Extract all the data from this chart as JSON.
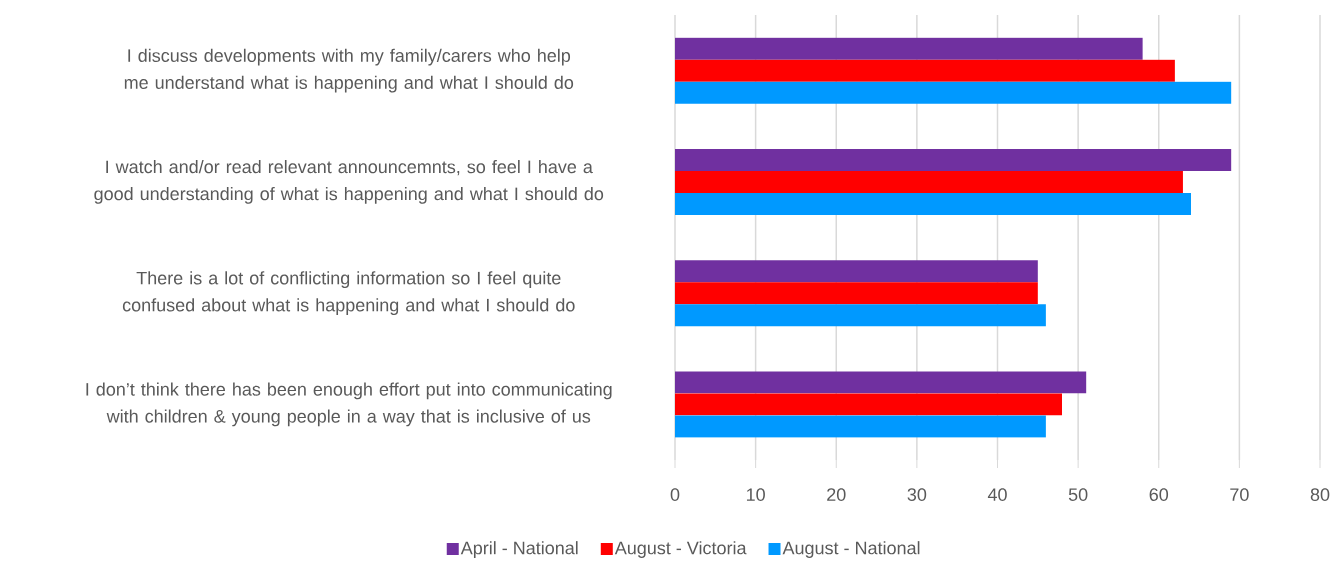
{
  "chart_data": {
    "type": "bar",
    "orientation": "horizontal",
    "categories": [
      "I discuss developments with my family/carers who help me understand what is happening and what I should do",
      "I watch and/or read relevant announcemnts, so feel I have a good understanding of what is happening and what I should do",
      "There is a lot of conflicting information so I feel quite confused about what is happening and what I should do",
      "I don’t think there has been enough effort put into communicating with children & young people in a way that is inclusive of us"
    ],
    "series": [
      {
        "name": "April - National",
        "color": "#7030a0",
        "values": [
          58,
          69,
          45,
          51
        ]
      },
      {
        "name": "August - Victoria",
        "color": "#ff0000",
        "values": [
          62,
          63,
          45,
          48
        ]
      },
      {
        "name": "August - National",
        "color": "#0099ff",
        "values": [
          69,
          64,
          46,
          46
        ]
      }
    ],
    "xlim": [
      0,
      80
    ],
    "xticks": [
      0,
      10,
      20,
      30,
      40,
      50,
      60,
      70,
      80
    ],
    "grid": "x",
    "legend": "bottom"
  }
}
